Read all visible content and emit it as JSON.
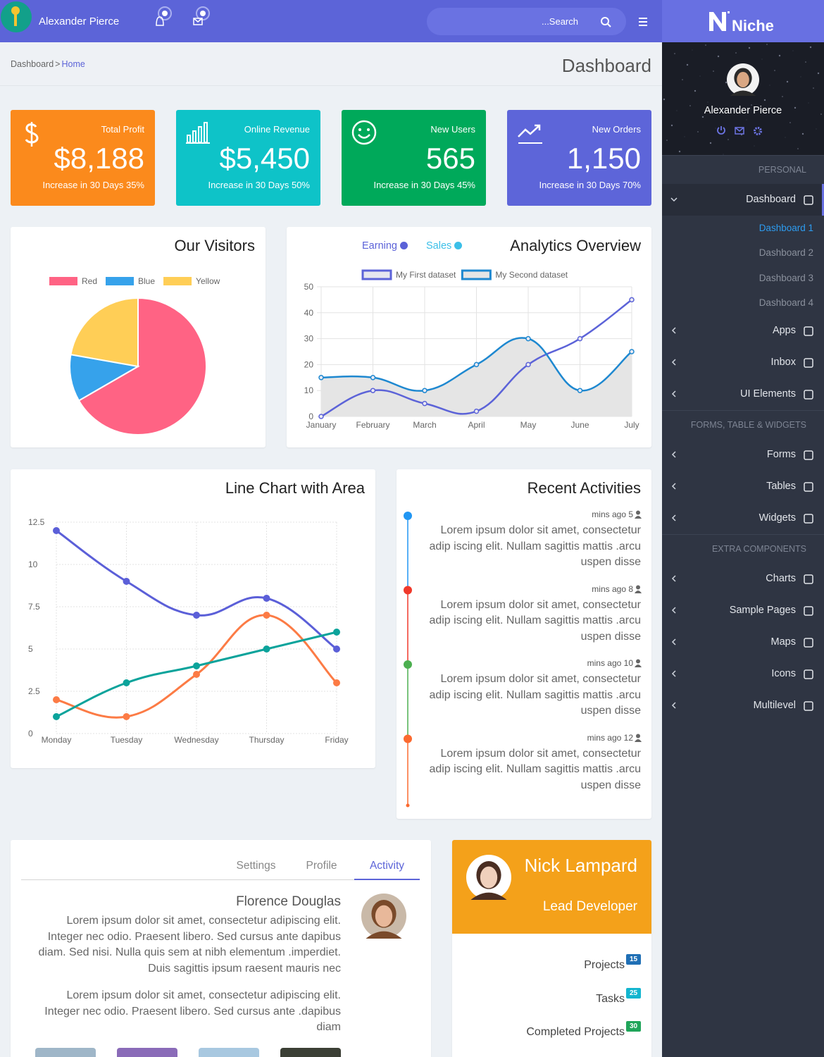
{
  "header": {
    "user_name": "Alexander Pierce",
    "search_placeholder": "...Search"
  },
  "breadcrumb": {
    "items": [
      "Dashboard",
      "Home"
    ],
    "separator": ">"
  },
  "page_title": "Dashboard",
  "stat_cards": [
    {
      "label": "Total Profit",
      "value": "$8,188",
      "footer": "Increase in 30 Days 35%",
      "color": "#fb8a1c"
    },
    {
      "label": "Online Revenue",
      "value": "$5,450",
      "footer": "Increase in 30 Days 50%",
      "color": "#0ec3c8"
    },
    {
      "label": "New Users",
      "value": "565",
      "footer": "Increase in 30 Days 45%",
      "color": "#00a95a"
    },
    {
      "label": "New Orders",
      "value": "1,150",
      "footer": "Increase in 30 Days 70%",
      "color": "#5d65d9"
    }
  ],
  "chart_data": [
    {
      "type": "pie",
      "title": "Our Visitors",
      "categories": [
        "Red",
        "Blue",
        "Yellow"
      ],
      "values": [
        300,
        50,
        100
      ],
      "colors": [
        "#ff6384",
        "#36a2eb",
        "#ffce56"
      ],
      "legend": "top"
    },
    {
      "type": "line",
      "title": "Analytics Overview",
      "badges": [
        {
          "name": "Earning",
          "color": "#5b62d8"
        },
        {
          "name": "Sales",
          "color": "#3bbfe8"
        }
      ],
      "categories": [
        "January",
        "February",
        "March",
        "April",
        "May",
        "June",
        "July"
      ],
      "series": [
        {
          "name": "My First dataset",
          "color": "#5c63d8",
          "values": [
            0,
            10,
            5,
            2,
            20,
            30,
            45
          ]
        },
        {
          "name": "My Second dataset",
          "color": "#1e88d0",
          "values": [
            15,
            15,
            10,
            20,
            30,
            10,
            25
          ],
          "fill": "#e5e5e5"
        }
      ],
      "ylim": [
        0,
        50
      ],
      "yticks": [
        0,
        10,
        20,
        30,
        40,
        50
      ],
      "grid": "solid",
      "legend": "top"
    },
    {
      "type": "line",
      "title": "Line Chart with Area",
      "categories": [
        "Monday",
        "Tuesday",
        "Wednesday",
        "Thursday",
        "Friday"
      ],
      "series": [
        {
          "color": "#5b5fd8",
          "values": [
            12,
            9,
            7,
            8,
            5
          ]
        },
        {
          "color": "#fc7b45",
          "values": [
            2,
            1,
            3.5,
            7,
            3
          ]
        },
        {
          "color": "#0ba39b",
          "values": [
            1,
            3,
            4,
            5,
            6
          ]
        }
      ],
      "ylim": [
        0,
        12.5
      ],
      "yticks": [
        0,
        2.5,
        5,
        7.5,
        10,
        12.5
      ],
      "grid": "dotted"
    }
  ],
  "activities": {
    "title": "Recent Activities",
    "items": [
      {
        "time": "mins ago 5",
        "text": "Lorem ipsum dolor sit amet, consectetur adip iscing elit. Nullam sagittis mattis .arcu uspen disse",
        "color": "#2196f3"
      },
      {
        "time": "mins ago 8",
        "text": "Lorem ipsum dolor sit amet, consectetur adip iscing elit. Nullam sagittis mattis .arcu uspen disse",
        "color": "#f0392b"
      },
      {
        "time": "mins ago 10",
        "text": "Lorem ipsum dolor sit amet, consectetur adip iscing elit. Nullam sagittis mattis .arcu uspen disse",
        "color": "#4caf50"
      },
      {
        "time": "mins ago 12",
        "text": "Lorem ipsum dolor sit amet, consectetur adip iscing elit. Nullam sagittis mattis .arcu uspen disse",
        "color": "#fb6a30"
      }
    ]
  },
  "tabs_card": {
    "tabs": [
      "Settings",
      "Profile",
      "Activity"
    ],
    "active": 2,
    "name": "Florence Douglas",
    "paragraphs": [
      "Lorem ipsum dolor sit amet, consectetur adipiscing elit. Integer nec odio. Praesent libero. Sed cursus ante dapibus diam. Sed nisi. Nulla quis sem at nibh elementum .imperdiet. Duis sagittis ipsum raesent mauris nec",
      "Lorem ipsum dolor sit amet, consectetur adipiscing elit. Integer nec odio. Praesent libero. Sed cursus ante .dapibus diam"
    ]
  },
  "profile_card": {
    "name": "Nick Lampard",
    "role": "Lead Developer",
    "stats": [
      {
        "label": "Projects",
        "count": 15,
        "color": "#1f6fb5"
      },
      {
        "label": "Tasks",
        "count": 25,
        "color": "#13b5cf"
      },
      {
        "label": "Completed Projects",
        "count": 30,
        "color": "#20a55a"
      }
    ]
  },
  "sidebar": {
    "brand": "Niche",
    "user_name": "Alexander Pierce",
    "sections": [
      {
        "title": "PERSONAL",
        "items": [
          {
            "label": "Dashboard",
            "active": true,
            "children": [
              "Dashboard 1",
              "Dashboard 2",
              "Dashboard 3",
              "Dashboard 4"
            ],
            "active_child": 0
          },
          {
            "label": "Apps"
          },
          {
            "label": "Inbox"
          },
          {
            "label": "UI Elements"
          }
        ]
      },
      {
        "title": "FORMS, TABLE & WIDGETS",
        "items": [
          {
            "label": "Forms"
          },
          {
            "label": "Tables"
          },
          {
            "label": "Widgets"
          }
        ]
      },
      {
        "title": "EXTRA COMPONENTS",
        "items": [
          {
            "label": "Charts"
          },
          {
            "label": "Sample Pages"
          },
          {
            "label": "Maps"
          },
          {
            "label": "Icons"
          },
          {
            "label": "Multilevel"
          }
        ]
      }
    ]
  }
}
